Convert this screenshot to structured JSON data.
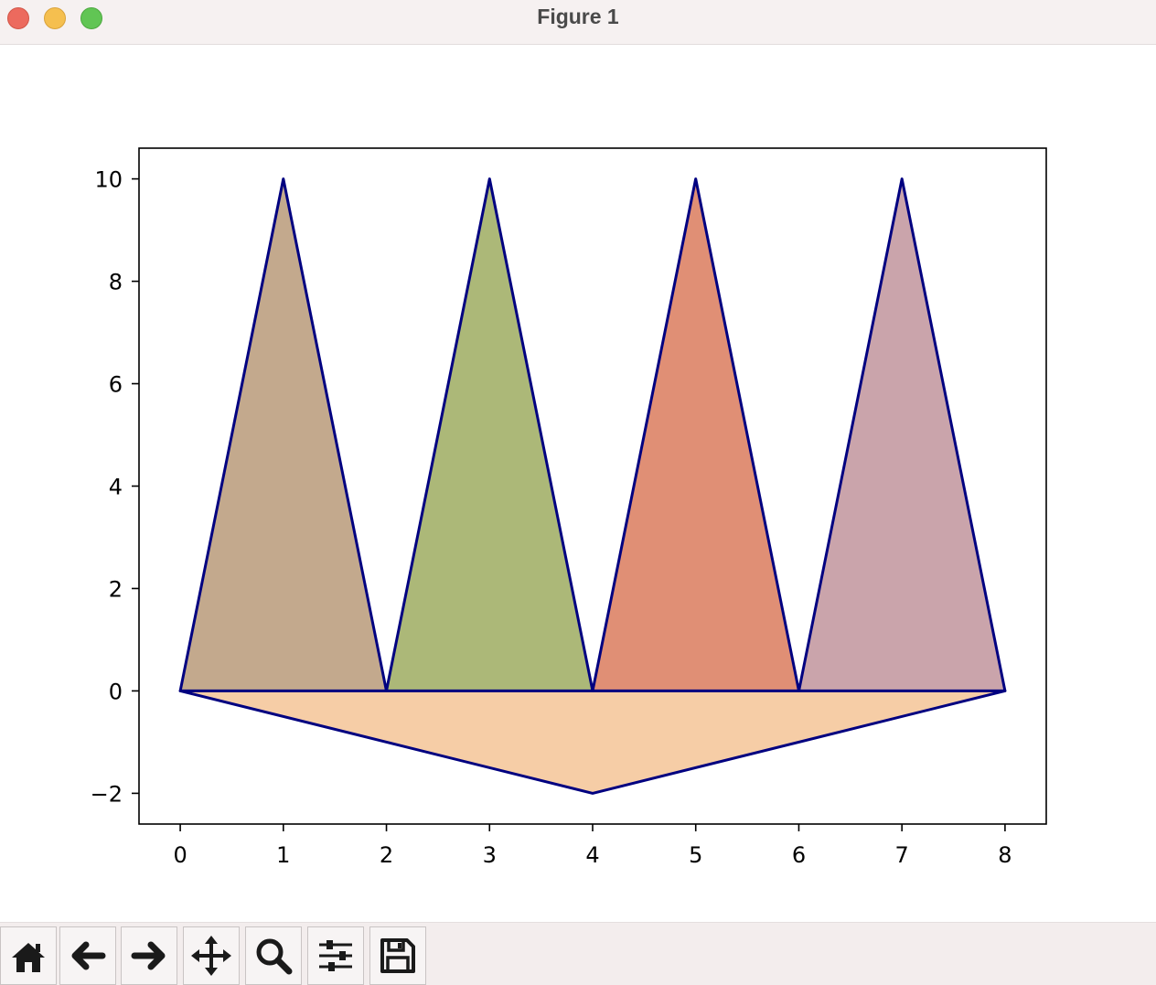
{
  "window": {
    "title": "Figure 1"
  },
  "toolbar": {
    "buttons": [
      {
        "name": "home-button",
        "icon": "home-icon"
      },
      {
        "name": "back-button",
        "icon": "arrow-left-icon"
      },
      {
        "name": "forward-button",
        "icon": "arrow-right-icon"
      },
      {
        "name": "pan-button",
        "icon": "move-icon"
      },
      {
        "name": "zoom-button",
        "icon": "zoom-icon"
      },
      {
        "name": "configure-subplots-button",
        "icon": "sliders-icon"
      },
      {
        "name": "save-button",
        "icon": "save-icon"
      }
    ]
  },
  "chart_data": {
    "type": "area",
    "title": "",
    "xlabel": "",
    "ylabel": "",
    "xlim": [
      -0.4,
      8.4
    ],
    "ylim": [
      -2.6,
      10.6
    ],
    "xticks": [
      0,
      1,
      2,
      3,
      4,
      5,
      6,
      7,
      8
    ],
    "yticks": [
      -2,
      0,
      2,
      4,
      6,
      8,
      10
    ],
    "ytick_labels": [
      "−2",
      "0",
      "2",
      "4",
      "6",
      "8",
      "10"
    ],
    "grid": false,
    "edge_color": "#000080",
    "polygons": [
      {
        "points": [
          [
            0,
            0
          ],
          [
            1,
            10
          ],
          [
            2,
            0
          ]
        ],
        "fill": "#c3a98d"
      },
      {
        "points": [
          [
            2,
            0
          ],
          [
            3,
            10
          ],
          [
            4,
            0
          ]
        ],
        "fill": "#acb878"
      },
      {
        "points": [
          [
            4,
            0
          ],
          [
            5,
            10
          ],
          [
            6,
            0
          ]
        ],
        "fill": "#e08f75"
      },
      {
        "points": [
          [
            6,
            0
          ],
          [
            7,
            10
          ],
          [
            8,
            0
          ]
        ],
        "fill": "#caa4ab"
      },
      {
        "points": [
          [
            0,
            0
          ],
          [
            8,
            0
          ],
          [
            4,
            -2
          ]
        ],
        "fill": "#f6cda6"
      }
    ]
  }
}
